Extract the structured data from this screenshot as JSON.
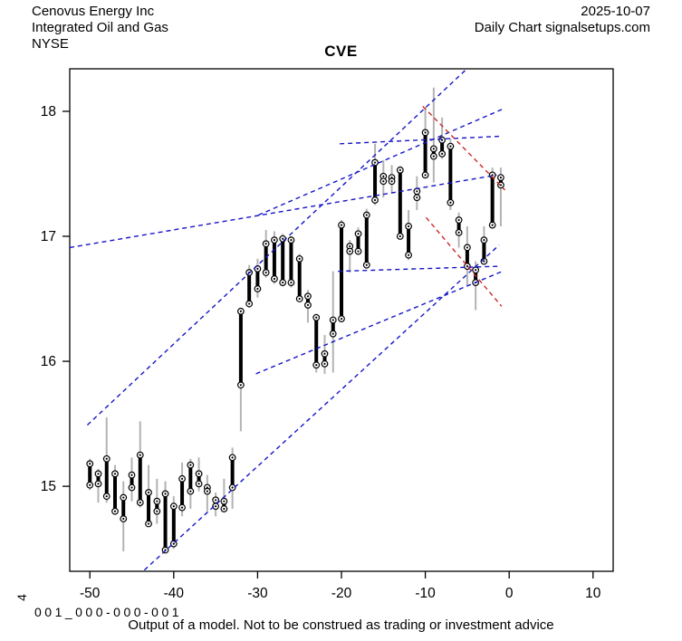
{
  "header": {
    "company": "Cenovus Energy Inc",
    "industry": "Integrated Oil and Gas",
    "exchange": "NYSE",
    "date": "2025-10-07",
    "chart_label": "Daily Chart signalsetups.com"
  },
  "title": "CVE",
  "footer": {
    "left_axis_char": "4",
    "model_code": "001_000-000-001",
    "disclaimer": "Output of a model. Not to be construed as trading or investment advice"
  },
  "chart_data": {
    "type": "bar",
    "subtype": "ohlc-daily-bars",
    "title": "CVE",
    "xlabel": "",
    "ylabel": "",
    "xlim": [
      -52.4,
      12.4
    ],
    "ylim": [
      14.32,
      18.34
    ],
    "x_ticks": [
      -50,
      -40,
      -30,
      -20,
      -10,
      0,
      10
    ],
    "y_ticks": [
      15,
      16,
      17,
      18
    ],
    "grid": "off",
    "legend": "none",
    "colors": {
      "body": "#000000",
      "wick": "#b3b3b3",
      "trendline_blue": "#1515c8",
      "trendline_red": "#cd2626",
      "axis": "#000000"
    },
    "bar_columns": [
      "day",
      "high",
      "low",
      "body_top",
      "body_bottom"
    ],
    "bars": [
      [
        -50,
        15.22,
        14.97,
        15.18,
        15.01
      ],
      [
        -49,
        15.14,
        14.87,
        15.1,
        15.02
      ],
      [
        -48,
        15.55,
        14.87,
        15.22,
        14.92
      ],
      [
        -47,
        15.17,
        14.78,
        15.1,
        14.8
      ],
      [
        -46,
        15.04,
        14.48,
        14.91,
        14.74
      ],
      [
        -45,
        15.23,
        14.88,
        15.09,
        14.99
      ],
      [
        -44,
        15.52,
        14.83,
        15.25,
        14.87
      ],
      [
        -43,
        15.17,
        14.68,
        14.95,
        14.7
      ],
      [
        -42,
        15.06,
        14.7,
        14.88,
        14.8
      ],
      [
        -41,
        15.04,
        14.47,
        14.94,
        14.49
      ],
      [
        -40,
        14.92,
        14.5,
        14.84,
        14.54
      ],
      [
        -39,
        15.19,
        14.76,
        15.06,
        14.83
      ],
      [
        -38,
        15.22,
        14.82,
        15.17,
        14.96
      ],
      [
        -37,
        15.23,
        14.96,
        15.1,
        15.02
      ],
      [
        -36,
        15.09,
        14.8,
        14.99,
        14.96
      ],
      [
        -35,
        14.95,
        14.76,
        14.89,
        14.84
      ],
      [
        -34,
        15.06,
        14.79,
        14.88,
        14.82
      ],
      [
        -33,
        15.31,
        14.82,
        15.23,
        14.99
      ],
      [
        -32,
        16.42,
        15.44,
        16.4,
        15.81
      ],
      [
        -31,
        16.77,
        16.43,
        16.71,
        16.46
      ],
      [
        -30,
        16.82,
        16.51,
        16.74,
        16.58
      ],
      [
        -29,
        17.05,
        16.67,
        16.94,
        16.71
      ],
      [
        -28,
        17.04,
        16.62,
        16.97,
        16.66
      ],
      [
        -27,
        17.02,
        16.6,
        16.98,
        16.63
      ],
      [
        -26,
        17.0,
        16.59,
        16.97,
        16.63
      ],
      [
        -25,
        16.86,
        16.48,
        16.82,
        16.5
      ],
      [
        -24,
        16.57,
        16.31,
        16.52,
        16.45
      ],
      [
        -23,
        16.38,
        15.91,
        16.35,
        15.97
      ],
      [
        -22,
        16.21,
        15.9,
        16.06,
        15.98
      ],
      [
        -21,
        16.72,
        15.91,
        16.33,
        16.22
      ],
      [
        -20,
        17.13,
        16.32,
        17.09,
        16.34
      ],
      [
        -19,
        16.97,
        16.71,
        16.92,
        16.88
      ],
      [
        -18,
        17.07,
        16.86,
        17.02,
        16.88
      ],
      [
        -17,
        17.22,
        16.74,
        17.17,
        16.77
      ],
      [
        -16,
        17.74,
        17.25,
        17.59,
        17.29
      ],
      [
        -15,
        17.61,
        17.31,
        17.48,
        17.44
      ],
      [
        -14,
        17.57,
        17.35,
        17.47,
        17.44
      ],
      [
        -13,
        17.56,
        16.98,
        17.53,
        17.0
      ],
      [
        -12,
        17.21,
        16.81,
        17.08,
        16.85
      ],
      [
        -11,
        17.48,
        17.21,
        17.36,
        17.31
      ],
      [
        -10,
        18.03,
        17.47,
        17.83,
        17.49
      ],
      [
        -9,
        18.19,
        17.43,
        17.7,
        17.64
      ],
      [
        -8,
        17.95,
        17.62,
        17.77,
        17.66
      ],
      [
        -7,
        17.78,
        17.21,
        17.72,
        17.27
      ],
      [
        -6,
        17.19,
        16.91,
        17.13,
        17.03
      ],
      [
        -5,
        17.08,
        16.6,
        16.91,
        16.76
      ],
      [
        -4,
        16.8,
        16.41,
        16.73,
        16.63
      ],
      [
        -3,
        17.08,
        16.78,
        16.97,
        16.8
      ],
      [
        -2,
        17.55,
        17.07,
        17.49,
        17.09
      ],
      [
        -1,
        17.55,
        17.08,
        17.47,
        17.41
      ]
    ],
    "trendlines": [
      {
        "x1": -52.4,
        "y1": 16.91,
        "x2": -1.5,
        "y2": 17.49,
        "color": "blue"
      },
      {
        "x1": -20.2,
        "y1": 17.74,
        "x2": -1.2,
        "y2": 17.8,
        "color": "blue"
      },
      {
        "x1": -50.3,
        "y1": 15.49,
        "x2": -5.2,
        "y2": 18.33,
        "color": "blue"
      },
      {
        "x1": -43.5,
        "y1": 14.33,
        "x2": -1.2,
        "y2": 16.93,
        "color": "blue"
      },
      {
        "x1": -30.2,
        "y1": 15.9,
        "x2": -0.8,
        "y2": 16.72,
        "color": "blue"
      },
      {
        "x1": -29.9,
        "y1": 17.17,
        "x2": -0.7,
        "y2": 18.02,
        "color": "blue"
      },
      {
        "x1": -20.4,
        "y1": 16.72,
        "x2": -1.3,
        "y2": 16.76,
        "color": "blue"
      },
      {
        "x1": -10.3,
        "y1": 18.04,
        "x2": -0.5,
        "y2": 17.37,
        "color": "red"
      },
      {
        "x1": -9.9,
        "y1": 17.15,
        "x2": -0.9,
        "y2": 16.44,
        "color": "red"
      }
    ]
  }
}
